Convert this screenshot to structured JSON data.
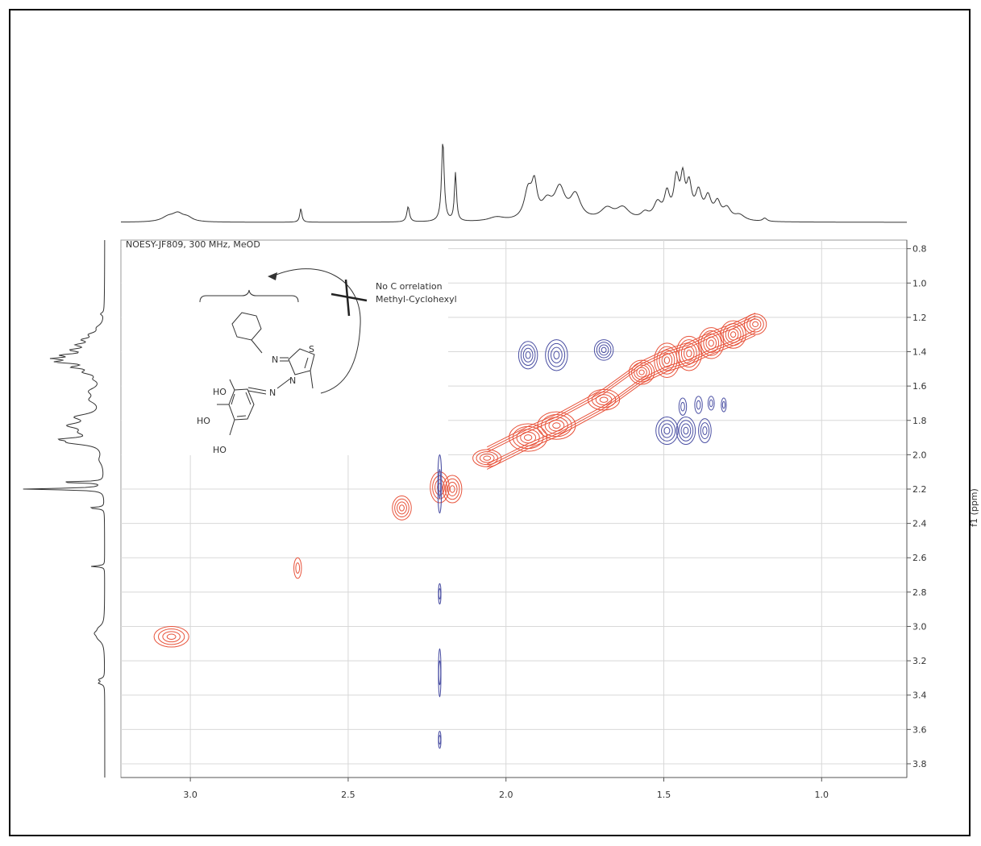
{
  "chart_data": {
    "type": "contour",
    "title": "NOESY-JF809, 300 MHz, MeOD",
    "xlabel": "",
    "ylabel": "f1 (ppm)",
    "xlim": [
      3.22,
      0.73
    ],
    "ylim": [
      0.75,
      3.88
    ],
    "x_ticks": [
      3.0,
      2.5,
      2.0,
      1.5,
      1.0
    ],
    "y_ticks": [
      0.8,
      1.0,
      1.2,
      1.4,
      1.6,
      1.8,
      2.0,
      2.2,
      2.4,
      2.6,
      2.8,
      3.0,
      3.2,
      3.4,
      3.6,
      3.8
    ],
    "grid": true,
    "colors": {
      "positive": "#e8533b",
      "negative": "#4a4fa3",
      "trace": "#333333",
      "grid": "#d8d8d8"
    },
    "series": [
      {
        "sign": "positive",
        "peaks": [
          {
            "x": 3.06,
            "y": 3.06,
            "w": 0.055,
            "h": 0.06
          },
          {
            "x": 2.66,
            "y": 2.66,
            "w": 0.012,
            "h": 0.06
          },
          {
            "x": 2.33,
            "y": 2.31,
            "w": 0.03,
            "h": 0.07
          },
          {
            "x": 2.21,
            "y": 2.19,
            "w": 0.03,
            "h": 0.09
          },
          {
            "x": 2.17,
            "y": 2.2,
            "w": 0.03,
            "h": 0.08
          },
          {
            "x": 2.06,
            "y": 2.02,
            "w": 0.045,
            "h": 0.05
          },
          {
            "x": 1.93,
            "y": 1.9,
            "w": 0.06,
            "h": 0.08
          },
          {
            "x": 1.84,
            "y": 1.83,
            "w": 0.06,
            "h": 0.08
          },
          {
            "x": 1.69,
            "y": 1.68,
            "w": 0.05,
            "h": 0.06
          },
          {
            "x": 1.57,
            "y": 1.52,
            "w": 0.04,
            "h": 0.07
          },
          {
            "x": 1.49,
            "y": 1.45,
            "w": 0.04,
            "h": 0.1
          },
          {
            "x": 1.42,
            "y": 1.41,
            "w": 0.04,
            "h": 0.1
          },
          {
            "x": 1.35,
            "y": 1.35,
            "w": 0.04,
            "h": 0.09
          },
          {
            "x": 1.28,
            "y": 1.3,
            "w": 0.04,
            "h": 0.08
          },
          {
            "x": 1.21,
            "y": 1.24,
            "w": 0.035,
            "h": 0.06
          }
        ]
      },
      {
        "sign": "negative",
        "peaks": [
          {
            "x": 1.93,
            "y": 1.42,
            "w": 0.03,
            "h": 0.08
          },
          {
            "x": 1.84,
            "y": 1.42,
            "w": 0.035,
            "h": 0.09
          },
          {
            "x": 1.69,
            "y": 1.39,
            "w": 0.03,
            "h": 0.06
          },
          {
            "x": 1.49,
            "y": 1.86,
            "w": 0.035,
            "h": 0.08
          },
          {
            "x": 1.43,
            "y": 1.86,
            "w": 0.03,
            "h": 0.08
          },
          {
            "x": 1.37,
            "y": 1.86,
            "w": 0.02,
            "h": 0.07
          },
          {
            "x": 1.44,
            "y": 1.72,
            "w": 0.012,
            "h": 0.05
          },
          {
            "x": 1.39,
            "y": 1.71,
            "w": 0.012,
            "h": 0.05
          },
          {
            "x": 1.35,
            "y": 1.7,
            "w": 0.01,
            "h": 0.04
          },
          {
            "x": 1.31,
            "y": 1.71,
            "w": 0.008,
            "h": 0.04
          },
          {
            "x": 2.21,
            "y": 2.17,
            "w": 0.006,
            "h": 0.17
          },
          {
            "x": 2.21,
            "y": 2.81,
            "w": 0.004,
            "h": 0.06
          },
          {
            "x": 2.21,
            "y": 3.27,
            "w": 0.004,
            "h": 0.14
          },
          {
            "x": 2.21,
            "y": 3.66,
            "w": 0.004,
            "h": 0.05
          }
        ]
      }
    ],
    "projection_peaks": [
      {
        "ppm": 3.33,
        "height": 0.07,
        "width": 0.008
      },
      {
        "ppm": 3.31,
        "height": 0.07,
        "width": 0.008
      },
      {
        "ppm": 3.07,
        "height": 0.06,
        "width": 0.025
      },
      {
        "ppm": 3.04,
        "height": 0.09,
        "width": 0.02
      },
      {
        "ppm": 3.01,
        "height": 0.05,
        "width": 0.02
      },
      {
        "ppm": 2.65,
        "height": 0.17,
        "width": 0.004
      },
      {
        "ppm": 2.31,
        "height": 0.19,
        "width": 0.005
      },
      {
        "ppm": 2.2,
        "height": 1.0,
        "width": 0.005
      },
      {
        "ppm": 2.16,
        "height": 0.6,
        "width": 0.004
      },
      {
        "ppm": 2.03,
        "height": 0.05,
        "width": 0.03
      },
      {
        "ppm": 1.93,
        "height": 0.35,
        "width": 0.015
      },
      {
        "ppm": 1.91,
        "height": 0.38,
        "width": 0.01
      },
      {
        "ppm": 1.87,
        "height": 0.2,
        "width": 0.02
      },
      {
        "ppm": 1.83,
        "height": 0.37,
        "width": 0.02
      },
      {
        "ppm": 1.78,
        "height": 0.3,
        "width": 0.02
      },
      {
        "ppm": 1.68,
        "height": 0.14,
        "width": 0.025
      },
      {
        "ppm": 1.63,
        "height": 0.15,
        "width": 0.025
      },
      {
        "ppm": 1.56,
        "height": 0.08,
        "width": 0.015
      },
      {
        "ppm": 1.52,
        "height": 0.2,
        "width": 0.015
      },
      {
        "ppm": 1.49,
        "height": 0.3,
        "width": 0.01
      },
      {
        "ppm": 1.46,
        "height": 0.48,
        "width": 0.01
      },
      {
        "ppm": 1.44,
        "height": 0.45,
        "width": 0.008
      },
      {
        "ppm": 1.42,
        "height": 0.4,
        "width": 0.01
      },
      {
        "ppm": 1.39,
        "height": 0.32,
        "width": 0.012
      },
      {
        "ppm": 1.36,
        "height": 0.26,
        "width": 0.012
      },
      {
        "ppm": 1.33,
        "height": 0.2,
        "width": 0.012
      },
      {
        "ppm": 1.3,
        "height": 0.14,
        "width": 0.015
      },
      {
        "ppm": 1.26,
        "height": 0.07,
        "width": 0.02
      },
      {
        "ppm": 1.18,
        "height": 0.04,
        "width": 0.008
      }
    ],
    "annotations": {
      "no_correlation_line1": "No C orrelation",
      "no_correlation_line2": "Methyl-Cyclohexyl"
    },
    "structure_labels": {
      "s": "S",
      "n_imine": "N",
      "n_ring": "N",
      "n_link": "N",
      "ho1": "HO",
      "ho2": "HO",
      "ho3": "HO"
    }
  }
}
